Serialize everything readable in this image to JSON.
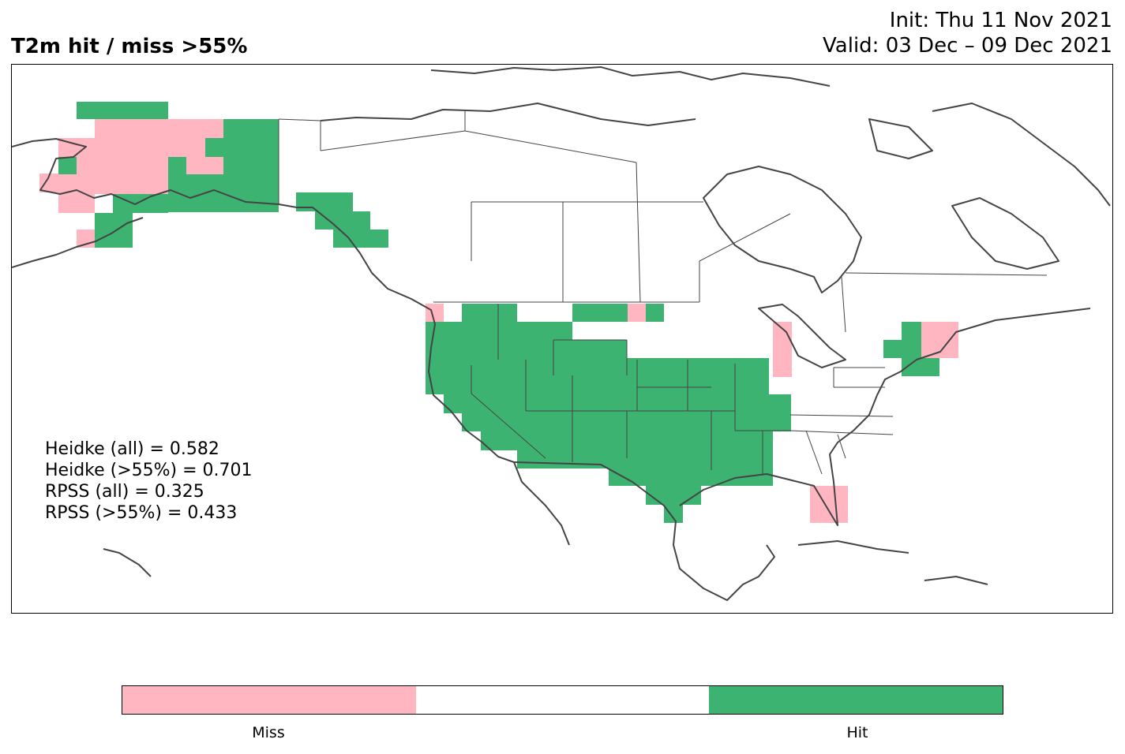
{
  "header": {
    "title": "T2m hit / miss  >55%",
    "init": "Init: Thu 11 Nov 2021",
    "valid": "Valid: 03 Dec – 09 Dec 2021"
  },
  "stats": [
    "Heidke (all) = 0.582",
    "Heidke (>55%) = 0.701",
    "RPSS (all) = 0.325",
    "RPSS (>55%) = 0.433"
  ],
  "colorbar": {
    "segments": [
      {
        "label": "Miss",
        "color": "#ffb6c1"
      },
      {
        "label": "",
        "color": "#ffffff"
      },
      {
        "label": "Hit",
        "color": "#3cb371"
      }
    ]
  },
  "colors": {
    "hit": "#3cb371",
    "miss": "#ffb6c1",
    "coast": "#444444"
  }
}
